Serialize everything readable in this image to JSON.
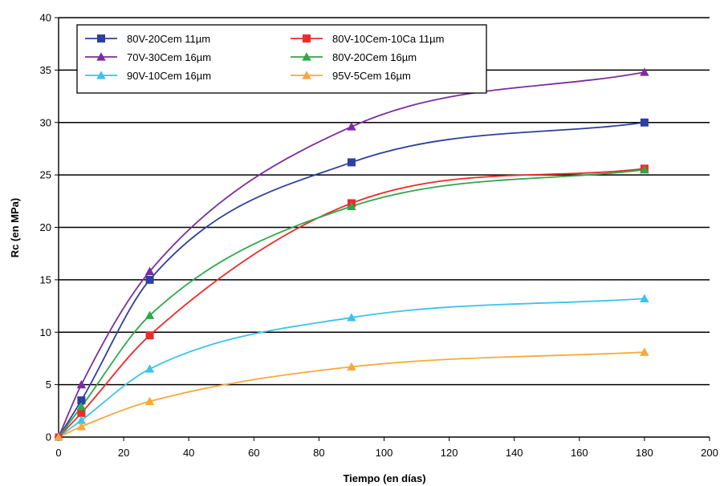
{
  "chart_data": {
    "type": "line",
    "title": "",
    "xlabel": "Tiempo (en días)",
    "ylabel": "Rc (en MPa)",
    "xlim": [
      0,
      200
    ],
    "ylim": [
      0,
      40
    ],
    "x_ticks": [
      0,
      20,
      40,
      60,
      80,
      100,
      120,
      140,
      160,
      180,
      200
    ],
    "y_ticks": [
      0,
      5,
      10,
      15,
      20,
      25,
      30,
      35,
      40
    ],
    "grid": "horizontal major gridlines",
    "legend_position": "top-left inside plot, two columns",
    "series": [
      {
        "name": "80V-20Cem 11µm",
        "color": "#2e3f9e",
        "marker": "square",
        "x": [
          0,
          7,
          28,
          90,
          180
        ],
        "y": [
          0,
          3.5,
          15.0,
          26.2,
          30.0
        ]
      },
      {
        "name": "80V-10Cem-10Ca 11µm",
        "color": "#ee2a2a",
        "marker": "square",
        "x": [
          0,
          7,
          28,
          90,
          180
        ],
        "y": [
          0,
          2.3,
          9.7,
          22.3,
          25.6
        ]
      },
      {
        "name": "70V-30Cem 16µm",
        "color": "#7b2d9e",
        "marker": "triangle",
        "x": [
          0,
          7,
          28,
          90,
          180
        ],
        "y": [
          0,
          5.0,
          15.8,
          29.6,
          34.8
        ]
      },
      {
        "name": "80V-20Cem 16µm",
        "color": "#2ea84a",
        "marker": "triangle",
        "x": [
          0,
          7,
          28,
          90,
          180
        ],
        "y": [
          0,
          2.9,
          11.6,
          22.0,
          25.5
        ]
      },
      {
        "name": "90V-10Cem 16µm",
        "color": "#3bc3ec",
        "marker": "triangle",
        "x": [
          0,
          7,
          28,
          90,
          180
        ],
        "y": [
          0,
          1.6,
          6.5,
          11.4,
          13.2
        ]
      },
      {
        "name": "95V-5Cem 16µm",
        "color": "#f7a93b",
        "marker": "triangle",
        "x": [
          0,
          7,
          28,
          90,
          180
        ],
        "y": [
          0,
          1.0,
          3.4,
          6.7,
          8.1
        ]
      }
    ]
  }
}
